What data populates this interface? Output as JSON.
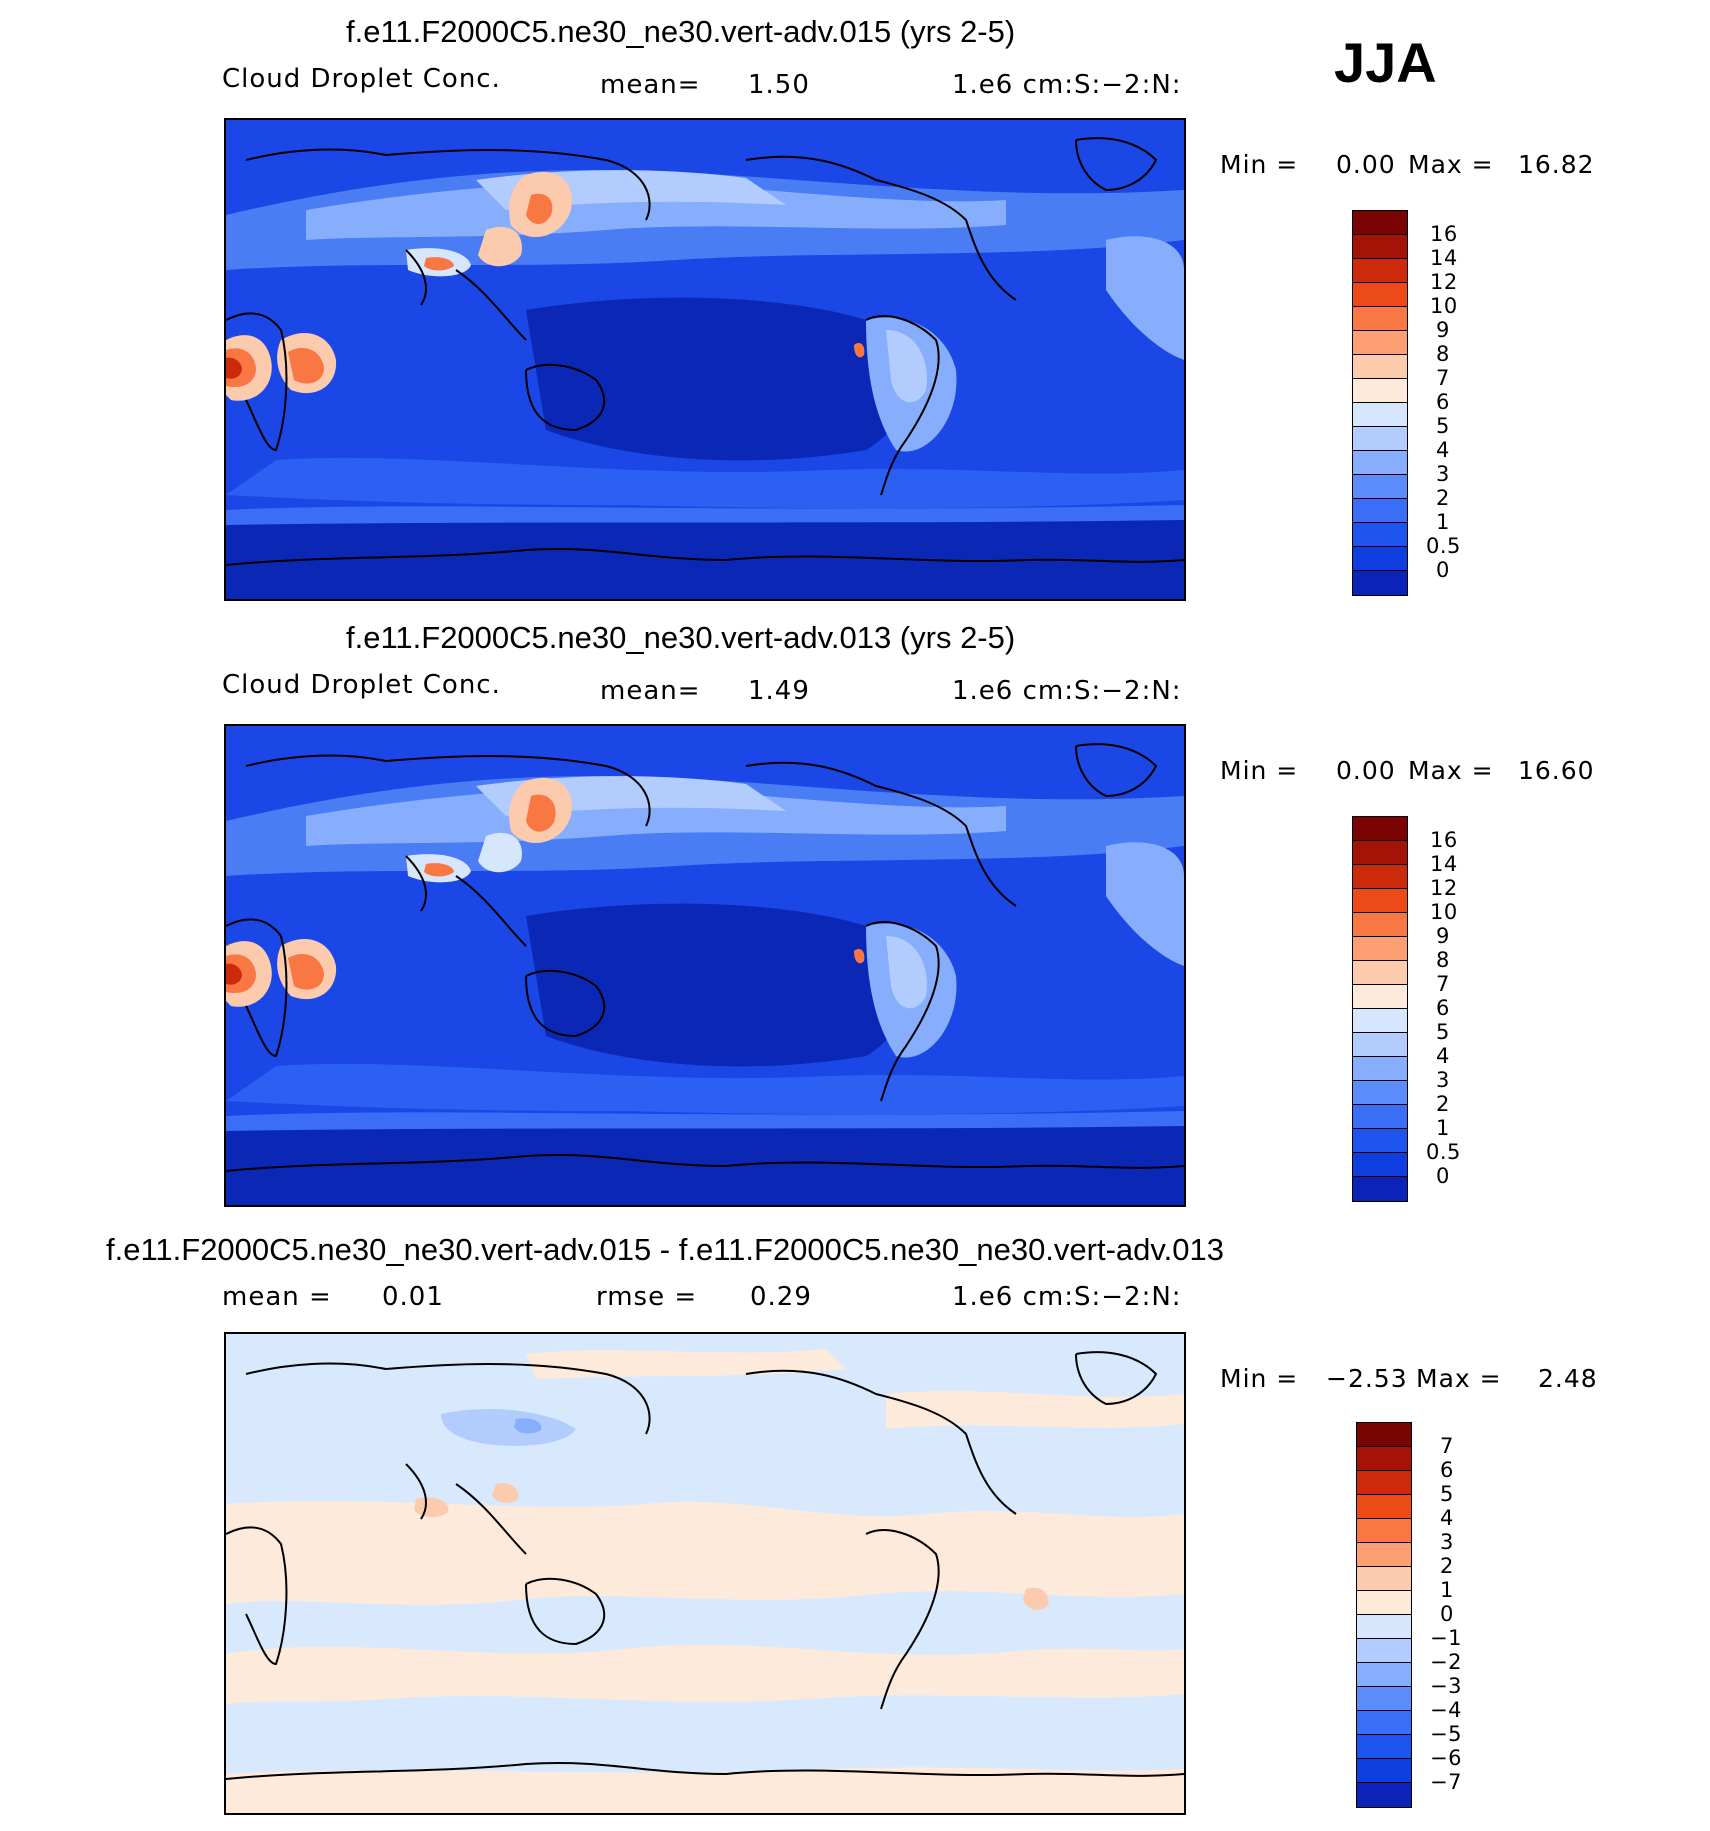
{
  "season": "JJA",
  "palette_cdnc": [
    "#07036b",
    "#0b23b8",
    "#0f3ee0",
    "#1f55ef",
    "#3a6ef7",
    "#5a8cfa",
    "#86aefc",
    "#b2cdfd",
    "#d6e6fd",
    "#fdeadb",
    "#fccaac",
    "#fc9f73",
    "#f97743",
    "#ec4a16",
    "#cc2a0a",
    "#a31406",
    "#7a0303"
  ],
  "palette_diff": [
    "#07036b",
    "#0b23b8",
    "#0f3ee0",
    "#1f55ef",
    "#3a6ef7",
    "#5a8cfa",
    "#86aefc",
    "#b2cdfd",
    "#d6e6fd",
    "#fdeadb",
    "#fccaac",
    "#fc9f73",
    "#f97743",
    "#ec4a16",
    "#cc2a0a",
    "#a31406",
    "#7a0303"
  ],
  "panels": [
    {
      "title": "f.e11.F2000C5.ne30_ne30.vert-adv.015 (yrs 2-5)",
      "left_label": "Cloud Droplet Conc.",
      "stat1": "mean=",
      "stat1_value": "1.50",
      "units": "1.e6 cm:S:−2:N:",
      "min_label": "Min =",
      "min_value": "0.00",
      "max_label": "Max =",
      "max_value": "16.82",
      "ticks": [
        "16",
        "14",
        "12",
        "10",
        "9",
        "8",
        "7",
        "6",
        "5",
        "4",
        "3",
        "2",
        "1",
        "0.5",
        "0"
      ]
    },
    {
      "title": "f.e11.F2000C5.ne30_ne30.vert-adv.013 (yrs 2-5)",
      "left_label": "Cloud Droplet Conc.",
      "stat1": "mean=",
      "stat1_value": "1.49",
      "units": "1.e6 cm:S:−2:N:",
      "min_label": "Min =",
      "min_value": "0.00",
      "max_label": "Max =",
      "max_value": "16.60",
      "ticks": [
        "16",
        "14",
        "12",
        "10",
        "9",
        "8",
        "7",
        "6",
        "5",
        "4",
        "3",
        "2",
        "1",
        "0.5",
        "0"
      ]
    },
    {
      "title": "f.e11.F2000C5.ne30_ne30.vert-adv.015 - f.e11.F2000C5.ne30_ne30.vert-adv.013",
      "left_label": "mean =",
      "left_value": "0.01",
      "stat1": "rmse =",
      "stat1_value": "0.29",
      "units": "1.e6 cm:S:−2:N:",
      "min_label": "Min =",
      "min_value": "−2.53",
      "max_label": "Max =",
      "max_value": "2.48",
      "ticks": [
        "7",
        "6",
        "5",
        "4",
        "3",
        "2",
        "1",
        "0",
        "−1",
        "−2",
        "−3",
        "−4",
        "−5",
        "−6",
        "−7"
      ]
    }
  ]
}
